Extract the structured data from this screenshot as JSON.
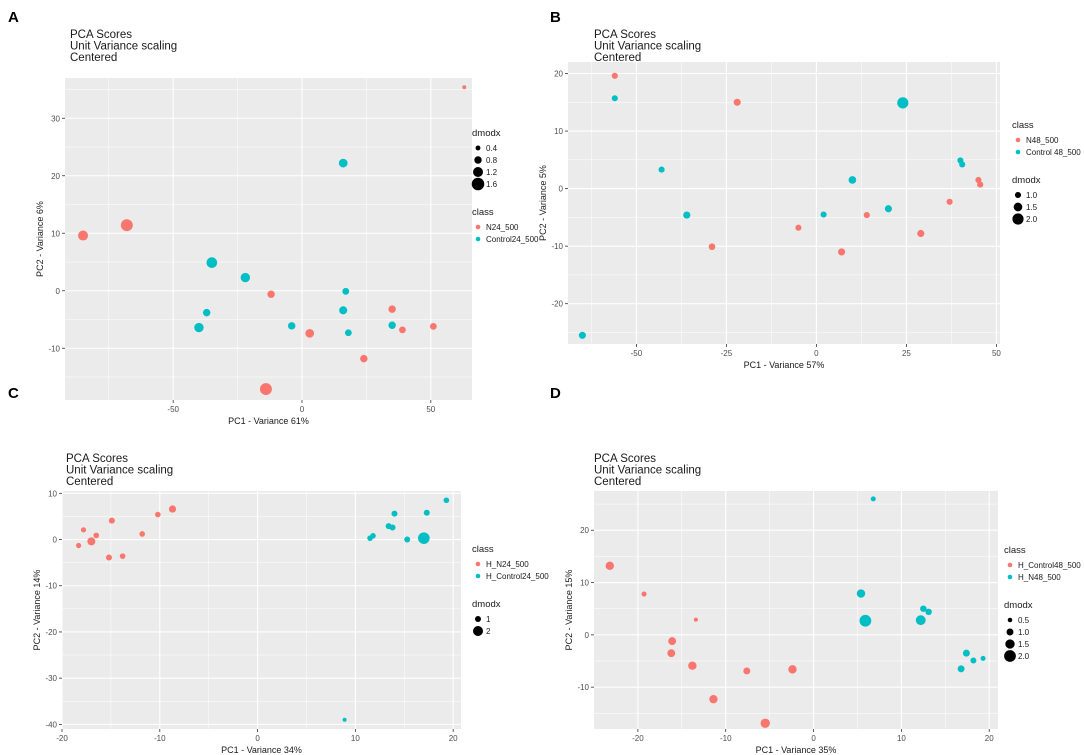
{
  "figure": {
    "colors": {
      "panel_bg": "#ebebeb",
      "grid": "#ffffff",
      "red": "#f8766d",
      "teal": "#00bfc4"
    }
  },
  "chart_data": [
    {
      "panel": "A",
      "type": "scatter",
      "title": [
        "PCA Scores",
        "Unit Variance scaling",
        "Centered"
      ],
      "xlabel": "PC1 - Variance 61%",
      "ylabel": "PC2 - Variance 6%",
      "xlim": [
        -92,
        66
      ],
      "ylim": [
        -19,
        37
      ],
      "xticks": [
        -50,
        0,
        50
      ],
      "yticks": [
        -10,
        0,
        10,
        20,
        30
      ],
      "legend_order": [
        "size",
        "class"
      ],
      "class_legend": {
        "title": "class",
        "labels": [
          "N24_500",
          "Control24_500"
        ]
      },
      "size_legend": {
        "title": "dmodx",
        "labels": [
          "0.4",
          "0.8",
          "1.2",
          "1.6"
        ],
        "values": [
          0.4,
          0.8,
          1.2,
          1.6
        ]
      },
      "size_range": [
        0.2,
        1.7
      ],
      "series": [
        {
          "name": "N24_500",
          "color": "red",
          "points": [
            {
              "x": -85,
              "y": 9.6,
              "size": 1.2
            },
            {
              "x": -68,
              "y": 11.4,
              "size": 1.5
            },
            {
              "x": -12,
              "y": -0.6,
              "size": 0.8
            },
            {
              "x": -14,
              "y": -17.1,
              "size": 1.5
            },
            {
              "x": 3,
              "y": -7.4,
              "size": 1.0
            },
            {
              "x": 24,
              "y": -11.8,
              "size": 0.8
            },
            {
              "x": 35,
              "y": -3.2,
              "size": 0.8
            },
            {
              "x": 39,
              "y": -6.8,
              "size": 0.7
            },
            {
              "x": 51,
              "y": -6.2,
              "size": 0.7
            },
            {
              "x": 63,
              "y": 35.4,
              "size": 0.25
            }
          ]
        },
        {
          "name": "Control24_500",
          "color": "teal",
          "points": [
            {
              "x": 16,
              "y": 22.2,
              "size": 1.0
            },
            {
              "x": -35,
              "y": 4.9,
              "size": 1.3
            },
            {
              "x": -22,
              "y": 2.3,
              "size": 1.1
            },
            {
              "x": -37,
              "y": -3.8,
              "size": 0.8
            },
            {
              "x": -40,
              "y": -6.4,
              "size": 1.1
            },
            {
              "x": -4,
              "y": -6.1,
              "size": 0.8
            },
            {
              "x": 17,
              "y": -0.1,
              "size": 0.7
            },
            {
              "x": 16,
              "y": -3.4,
              "size": 0.9
            },
            {
              "x": 18,
              "y": -7.3,
              "size": 0.7
            },
            {
              "x": 35,
              "y": -6.0,
              "size": 0.8
            }
          ]
        }
      ]
    },
    {
      "panel": "B",
      "type": "scatter",
      "title": [
        "PCA Scores",
        "Unit Variance scaling",
        "Centered"
      ],
      "xlabel": "PC1 - Variance 57%",
      "ylabel": "PC2 - Variance 5%",
      "xlim": [
        -69,
        51
      ],
      "ylim": [
        -27,
        22
      ],
      "xticks": [
        -50,
        -25,
        0,
        25,
        50
      ],
      "yticks": [
        -20,
        -10,
        0,
        10,
        20
      ],
      "legend_order": [
        "class",
        "size"
      ],
      "class_legend": {
        "title": "class",
        "labels": [
          "N48_500",
          "Control 48_500"
        ]
      },
      "size_legend": {
        "title": "dmodx",
        "labels": [
          "1.0",
          "1.5",
          "2.0"
        ],
        "values": [
          1.0,
          1.5,
          2.0
        ]
      },
      "size_range": [
        0.5,
        2.4
      ],
      "series": [
        {
          "name": "N48_500",
          "color": "red",
          "points": [
            {
              "x": -56,
              "y": 19.6,
              "size": 1.0
            },
            {
              "x": -22,
              "y": 15.0,
              "size": 1.2
            },
            {
              "x": -29,
              "y": -10.1,
              "size": 1.1
            },
            {
              "x": -5,
              "y": -6.8,
              "size": 1.0
            },
            {
              "x": 7,
              "y": -11.0,
              "size": 1.2
            },
            {
              "x": 14,
              "y": -4.6,
              "size": 1.0
            },
            {
              "x": 29,
              "y": -7.8,
              "size": 1.2
            },
            {
              "x": 37,
              "y": -2.3,
              "size": 1.0
            },
            {
              "x": 45,
              "y": 1.5,
              "size": 1.0
            },
            {
              "x": 45.5,
              "y": 0.7,
              "size": 1.0
            }
          ]
        },
        {
          "name": "Control 48_500",
          "color": "teal",
          "points": [
            {
              "x": -56,
              "y": 15.7,
              "size": 1.0
            },
            {
              "x": -43,
              "y": 3.3,
              "size": 1.0
            },
            {
              "x": -36,
              "y": -4.6,
              "size": 1.2
            },
            {
              "x": 2,
              "y": -4.5,
              "size": 1.0
            },
            {
              "x": 10,
              "y": 1.5,
              "size": 1.3
            },
            {
              "x": 20,
              "y": -3.5,
              "size": 1.2
            },
            {
              "x": 24,
              "y": 14.9,
              "size": 2.0
            },
            {
              "x": 40,
              "y": 4.9,
              "size": 1.0
            },
            {
              "x": 40.5,
              "y": 4.2,
              "size": 1.0
            },
            {
              "x": -65,
              "y": -25.5,
              "size": 1.2
            }
          ]
        }
      ]
    },
    {
      "panel": "C",
      "type": "scatter",
      "title": [
        "PCA Scores",
        "Unit Variance scaling",
        "Centered"
      ],
      "xlabel": "PC1 - Variance 34%",
      "ylabel": "PC2 - Variance 14%",
      "xlim": [
        -20,
        20.8
      ],
      "ylim": [
        -41,
        10.5
      ],
      "xticks": [
        -20,
        -10,
        0,
        10,
        20
      ],
      "yticks": [
        -40,
        -30,
        -20,
        -10,
        0,
        10
      ],
      "legend_order": [
        "class",
        "size"
      ],
      "class_legend": {
        "title": "class",
        "labels": [
          "H_N24_500",
          "H_Control24_500"
        ]
      },
      "size_legend": {
        "title": "dmodx",
        "labels": [
          "1",
          "2"
        ],
        "values": [
          1,
          2
        ]
      },
      "size_range": [
        0.4,
        2.8
      ],
      "series": [
        {
          "name": "H_N24_500",
          "color": "red",
          "points": [
            {
              "x": -18.3,
              "y": -1.3,
              "size": 0.8
            },
            {
              "x": -17.8,
              "y": 2.1,
              "size": 0.8
            },
            {
              "x": -17.0,
              "y": -0.4,
              "size": 1.5
            },
            {
              "x": -16.5,
              "y": 0.9,
              "size": 0.9
            },
            {
              "x": -15.2,
              "y": -3.9,
              "size": 1.0
            },
            {
              "x": -14.9,
              "y": 4.1,
              "size": 1.0
            },
            {
              "x": -13.8,
              "y": -3.6,
              "size": 0.9
            },
            {
              "x": -11.8,
              "y": 1.2,
              "size": 0.9
            },
            {
              "x": -10.2,
              "y": 5.4,
              "size": 0.9
            },
            {
              "x": -8.7,
              "y": 6.6,
              "size": 1.3
            }
          ]
        },
        {
          "name": "H_Control24_500",
          "color": "teal",
          "points": [
            {
              "x": 11.5,
              "y": 0.3,
              "size": 0.9
            },
            {
              "x": 11.8,
              "y": 0.8,
              "size": 0.9
            },
            {
              "x": 13.4,
              "y": 2.9,
              "size": 1.0
            },
            {
              "x": 13.8,
              "y": 2.6,
              "size": 1.0
            },
            {
              "x": 14.0,
              "y": 5.6,
              "size": 1.0
            },
            {
              "x": 15.3,
              "y": 0.0,
              "size": 1.0
            },
            {
              "x": 17.0,
              "y": 0.3,
              "size": 2.4
            },
            {
              "x": 17.3,
              "y": 5.8,
              "size": 1.0
            },
            {
              "x": 19.3,
              "y": 8.5,
              "size": 0.9
            },
            {
              "x": 8.9,
              "y": -39.0,
              "size": 0.5
            }
          ]
        }
      ]
    },
    {
      "panel": "D",
      "type": "scatter",
      "title": [
        "PCA Scores",
        "Unit Variance scaling",
        "Centered"
      ],
      "xlabel": "PC1 - Variance 35%",
      "ylabel": "PC2 - Variance 15%",
      "xlim": [
        -25,
        21
      ],
      "ylim": [
        -18,
        27.5
      ],
      "xticks": [
        -20,
        -10,
        0,
        10,
        20
      ],
      "yticks": [
        -10,
        0,
        10,
        20
      ],
      "legend_order": [
        "class",
        "size"
      ],
      "class_legend": {
        "title": "class",
        "labels": [
          "H_Control48_500",
          "H_N48_500"
        ]
      },
      "size_legend": {
        "title": "dmodx",
        "labels": [
          "0.5",
          "1.0",
          "1.5",
          "2.0"
        ],
        "values": [
          0.5,
          1.0,
          1.5,
          2.0
        ]
      },
      "size_range": [
        0.3,
        2.3
      ],
      "series": [
        {
          "name": "H_Control48_500",
          "color": "red",
          "points": [
            {
              "x": -23.2,
              "y": 13.2,
              "size": 1.3
            },
            {
              "x": -19.3,
              "y": 7.8,
              "size": 0.6
            },
            {
              "x": -13.4,
              "y": 2.9,
              "size": 0.4
            },
            {
              "x": -16.1,
              "y": -1.2,
              "size": 1.2
            },
            {
              "x": -16.2,
              "y": -3.5,
              "size": 1.2
            },
            {
              "x": -13.8,
              "y": -5.9,
              "size": 1.3
            },
            {
              "x": -7.6,
              "y": -6.9,
              "size": 1.0
            },
            {
              "x": -2.4,
              "y": -6.6,
              "size": 1.3
            },
            {
              "x": -11.4,
              "y": -12.3,
              "size": 1.3
            },
            {
              "x": -5.5,
              "y": -16.9,
              "size": 1.5
            }
          ]
        },
        {
          "name": "H_N48_500",
          "color": "teal",
          "points": [
            {
              "x": 6.8,
              "y": 26.0,
              "size": 0.6
            },
            {
              "x": 5.4,
              "y": 7.9,
              "size": 1.3
            },
            {
              "x": 5.9,
              "y": 2.7,
              "size": 2.0
            },
            {
              "x": 12.2,
              "y": 2.8,
              "size": 1.6
            },
            {
              "x": 12.5,
              "y": 5.0,
              "size": 0.9
            },
            {
              "x": 13.1,
              "y": 4.4,
              "size": 0.9
            },
            {
              "x": 17.4,
              "y": -3.5,
              "size": 1.0
            },
            {
              "x": 18.2,
              "y": -4.9,
              "size": 0.8
            },
            {
              "x": 19.3,
              "y": -4.5,
              "size": 0.6
            },
            {
              "x": 16.8,
              "y": -6.5,
              "size": 1.0
            }
          ]
        }
      ]
    }
  ]
}
